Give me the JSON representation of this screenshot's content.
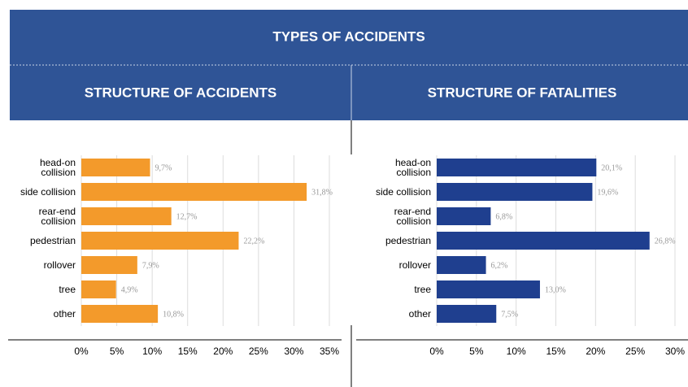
{
  "header": {
    "title": "TYPES OF ACCIDENTS"
  },
  "chart_data": [
    {
      "type": "bar",
      "orientation": "horizontal",
      "title": "STRUCTURE OF ACCIDENTS",
      "categories": [
        "head-on collision",
        "side collision",
        "rear-end collision",
        "pedestrian",
        "rollover",
        "tree",
        "other"
      ],
      "values": [
        9.7,
        31.8,
        12.7,
        22.2,
        7.9,
        4.9,
        10.8
      ],
      "value_labels": [
        "9,7%",
        "31,8%",
        "12,7%",
        "22,2%",
        "7,9%",
        "4,9%",
        "10,8%"
      ],
      "color": "#f39a2b",
      "xlim": [
        0,
        35
      ],
      "xticks": [
        {
          "value": 0,
          "label": "0%"
        },
        {
          "value": 5,
          "label": "5%"
        },
        {
          "value": 10,
          "label": "10%"
        },
        {
          "value": 15,
          "label": "15%"
        },
        {
          "value": 20,
          "label": "20%"
        },
        {
          "value": 25,
          "label": "25%"
        },
        {
          "value": 30,
          "label": "30%"
        },
        {
          "value": 35,
          "label": "35%"
        }
      ],
      "grid": true
    },
    {
      "type": "bar",
      "orientation": "horizontal",
      "title": "STRUCTURE OF FATALITIES",
      "categories": [
        "head-on collision",
        "side collision",
        "rear-end collision",
        "pedestrian",
        "rollover",
        "tree",
        "other"
      ],
      "values": [
        20.1,
        19.6,
        6.8,
        26.8,
        6.2,
        13.0,
        7.5
      ],
      "value_labels": [
        "20,1%",
        "19,6%",
        "6,8%",
        "26,8%",
        "6,2%",
        "13,0%",
        "7,5%"
      ],
      "color": "#1f3f8f",
      "xlim": [
        0,
        30
      ],
      "xticks": [
        {
          "value": 0,
          "label": "0%"
        },
        {
          "value": 5,
          "label": "5%"
        },
        {
          "value": 10,
          "label": "10%"
        },
        {
          "value": 15,
          "label": "15%"
        },
        {
          "value": 20,
          "label": "20%"
        },
        {
          "value": 25,
          "label": "25%"
        },
        {
          "value": 30,
          "label": "30%"
        }
      ],
      "grid": true
    }
  ]
}
